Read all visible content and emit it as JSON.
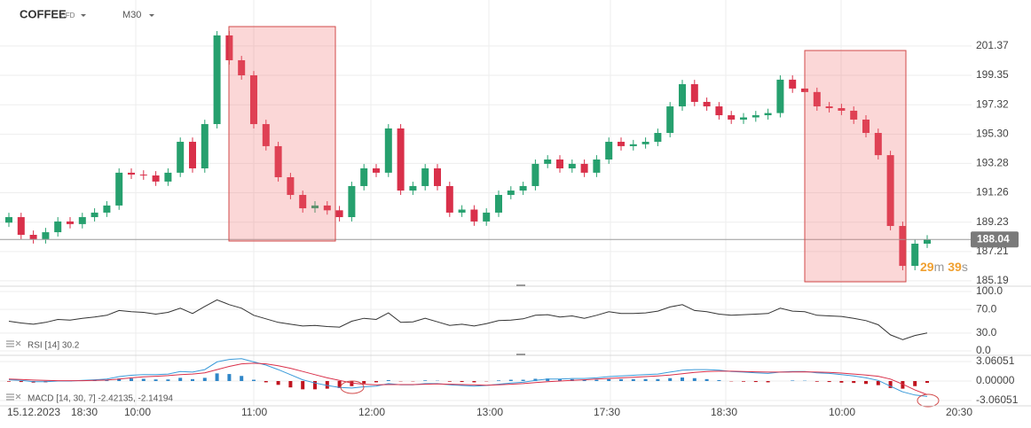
{
  "header": {
    "symbol": "COFFEE",
    "symbol_type": "CFD",
    "timeframe": "M30"
  },
  "chart_data": [
    {
      "type": "candlestick",
      "open": [
        189.2,
        189.58,
        188.36,
        188.06,
        188.54,
        189.28,
        189.1,
        189.58,
        189.89,
        190.38,
        192.64,
        192.51,
        192.45,
        192.03,
        192.64,
        194.77,
        192.94,
        195.99,
        202.1,
        200.39,
        199.35,
        195.99,
        194.47,
        192.33,
        191.11,
        190.19,
        190.38,
        190.05,
        189.58,
        191.72,
        192.94,
        192.64,
        195.69,
        191.41,
        191.72,
        192.94,
        191.72,
        189.89,
        190.1,
        189.28,
        189.89,
        191.11,
        191.41,
        191.72,
        193.25,
        193.55,
        192.94,
        193.25,
        192.64,
        193.55,
        194.77,
        194.47,
        194.6,
        194.77,
        195.38,
        197.21,
        198.74,
        197.52,
        197.21,
        196.6,
        196.3,
        196.45,
        196.6,
        196.75,
        199.05,
        198.44,
        198.2,
        197.21,
        197.09,
        196.91,
        196.3,
        195.38,
        193.85,
        188.97,
        186.22,
        187.75
      ],
      "high": [
        189.88,
        189.88,
        188.66,
        188.84,
        189.58,
        189.58,
        189.88,
        190.19,
        190.68,
        192.94,
        192.94,
        192.81,
        192.75,
        192.94,
        195.07,
        195.07,
        196.29,
        202.4,
        202.4,
        200.69,
        199.65,
        196.29,
        194.77,
        192.63,
        191.41,
        190.68,
        190.68,
        190.35,
        192.02,
        193.24,
        193.24,
        195.99,
        195.99,
        192.02,
        193.24,
        193.24,
        192.02,
        190.4,
        190.4,
        190.19,
        191.41,
        191.71,
        192.02,
        193.55,
        193.85,
        193.85,
        193.55,
        193.55,
        193.85,
        195.07,
        195.07,
        194.9,
        195.07,
        195.68,
        197.51,
        199.04,
        199.04,
        197.82,
        197.51,
        196.9,
        196.75,
        196.9,
        197.05,
        199.35,
        199.35,
        198.74,
        198.5,
        197.51,
        197.39,
        197.21,
        196.6,
        195.68,
        194.15,
        189.27,
        188.05,
        188.34
      ],
      "low": [
        188.9,
        188.06,
        187.76,
        187.76,
        188.24,
        188.8,
        188.8,
        189.28,
        189.59,
        190.08,
        192.21,
        192.15,
        191.73,
        191.73,
        192.34,
        192.64,
        192.64,
        195.69,
        200.09,
        199.05,
        195.69,
        194.17,
        192.03,
        190.81,
        189.89,
        189.89,
        189.75,
        189.28,
        189.28,
        191.42,
        192.34,
        192.34,
        191.11,
        191.11,
        191.42,
        191.42,
        189.59,
        189.59,
        188.98,
        188.98,
        189.59,
        190.81,
        191.11,
        191.42,
        192.95,
        192.64,
        192.64,
        192.34,
        192.34,
        193.25,
        194.17,
        194.17,
        194.3,
        194.47,
        195.08,
        196.91,
        197.22,
        196.91,
        196.3,
        196.0,
        196.0,
        196.15,
        196.3,
        196.45,
        198.14,
        197.9,
        196.91,
        196.79,
        196.61,
        196.0,
        195.08,
        193.55,
        188.67,
        185.92,
        185.92,
        187.45
      ],
      "close": [
        189.58,
        188.36,
        188.06,
        188.54,
        189.28,
        189.1,
        189.58,
        189.89,
        190.38,
        192.64,
        192.51,
        192.45,
        192.03,
        192.64,
        194.77,
        192.94,
        195.99,
        202.1,
        200.39,
        199.35,
        195.99,
        194.47,
        192.33,
        191.11,
        190.19,
        190.38,
        190.05,
        189.58,
        191.72,
        192.94,
        192.64,
        195.69,
        191.41,
        191.72,
        192.94,
        191.72,
        189.89,
        190.1,
        189.28,
        189.89,
        191.11,
        191.41,
        191.72,
        193.25,
        193.55,
        192.94,
        193.25,
        192.64,
        193.55,
        194.77,
        194.47,
        194.6,
        194.77,
        195.38,
        197.21,
        198.74,
        197.52,
        197.21,
        196.6,
        196.3,
        196.45,
        196.6,
        196.75,
        199.05,
        198.44,
        198.2,
        197.21,
        197.09,
        196.91,
        196.3,
        195.38,
        193.85,
        188.97,
        186.22,
        187.75,
        188.04
      ],
      "up_color": "#26a06e",
      "down_color": "#d9304a",
      "ylim": [
        184.88,
        204.54
      ],
      "yticks": [
        201.37,
        199.35,
        197.32,
        {
          "value": 195.3,
          "label": "195.30"
        },
        193.28,
        191.26,
        189.23,
        187.21,
        185.19
      ],
      "last_price": 188.04,
      "countdown": [
        "29",
        "m",
        "39",
        "s"
      ],
      "x_labels": [
        "15.12.2023",
        "18:30",
        "10:00",
        "11:00",
        "12:00",
        "13:00",
        "17:30",
        "18:30",
        "10:00",
        "20:30"
      ]
    },
    {
      "type": "line",
      "label": "RSI [14] 30.2",
      "color": "#333333",
      "values": [
        50,
        47,
        45,
        48,
        53,
        52,
        55,
        57,
        60,
        68,
        66,
        65,
        62,
        65,
        72,
        63,
        75,
        86,
        78,
        72,
        60,
        54,
        48,
        45,
        42,
        43,
        41,
        40,
        50,
        55,
        53,
        64,
        48,
        49,
        55,
        49,
        43,
        45,
        42,
        46,
        51,
        52,
        54,
        60,
        61,
        57,
        59,
        55,
        60,
        66,
        63,
        63,
        64,
        67,
        74,
        78,
        68,
        66,
        62,
        60,
        61,
        62,
        63,
        72,
        67,
        66,
        60,
        59,
        58,
        55,
        51,
        44,
        27,
        19,
        26,
        30.2
      ],
      "ylim": [
        -6,
        107.5
      ],
      "yticks": [
        {
          "value": 100,
          "label": "100.0"
        },
        {
          "value": 70,
          "label": "70.0"
        },
        {
          "value": 30,
          "label": "30.0"
        },
        {
          "value": 0,
          "label": "0.0"
        }
      ]
    },
    {
      "type": "macd",
      "label": "MACD [14, 30, 7] -2.42135, -2.14194",
      "macd_color": "#3a9ad9",
      "signal_color": "#d9304a",
      "hist_up_color": "#2f86c8",
      "hist_down_color": "#c0141f",
      "macd": [
        0.2,
        0.1,
        -0.1,
        -0.1,
        0.0,
        0.0,
        0.1,
        0.2,
        0.3,
        0.7,
        0.9,
        1.0,
        1.0,
        1.1,
        1.5,
        1.4,
        1.8,
        3.0,
        3.4,
        3.5,
        3.0,
        2.5,
        1.8,
        1.0,
        0.2,
        -0.3,
        -0.7,
        -1.0,
        -1.1,
        -0.9,
        -0.8,
        -0.4,
        -0.6,
        -0.6,
        -0.4,
        -0.4,
        -0.6,
        -0.7,
        -0.8,
        -0.7,
        -0.5,
        -0.3,
        -0.2,
        0.1,
        0.3,
        0.3,
        0.4,
        0.4,
        0.5,
        0.7,
        0.8,
        0.9,
        1.0,
        1.1,
        1.4,
        1.7,
        1.8,
        1.8,
        1.7,
        1.5,
        1.4,
        1.3,
        1.2,
        1.4,
        1.5,
        1.5,
        1.3,
        1.2,
        1.0,
        0.8,
        0.5,
        0.1,
        -0.8,
        -1.7,
        -2.2,
        -2.42135
      ],
      "signal": [
        0.3,
        0.25,
        0.15,
        0.1,
        0.05,
        0.05,
        0.05,
        0.1,
        0.15,
        0.3,
        0.5,
        0.65,
        0.75,
        0.85,
        1.0,
        1.1,
        1.3,
        1.8,
        2.3,
        2.7,
        2.8,
        2.7,
        2.4,
        2.0,
        1.5,
        1.0,
        0.5,
        0.1,
        -0.3,
        -0.5,
        -0.6,
        -0.55,
        -0.55,
        -0.55,
        -0.5,
        -0.45,
        -0.5,
        -0.55,
        -0.6,
        -0.65,
        -0.6,
        -0.5,
        -0.4,
        -0.25,
        -0.1,
        0.0,
        0.1,
        0.2,
        0.3,
        0.4,
        0.5,
        0.6,
        0.7,
        0.8,
        0.95,
        1.15,
        1.35,
        1.5,
        1.55,
        1.55,
        1.5,
        1.45,
        1.4,
        1.4,
        1.42,
        1.45,
        1.4,
        1.35,
        1.25,
        1.1,
        0.95,
        0.75,
        0.3,
        -0.5,
        -1.4,
        -2.14194
      ],
      "histogram": [
        -0.1,
        -0.15,
        -0.25,
        -0.2,
        -0.05,
        -0.05,
        0.05,
        0.1,
        0.15,
        0.4,
        0.4,
        0.35,
        0.25,
        0.25,
        0.5,
        0.3,
        0.5,
        1.2,
        1.1,
        0.8,
        0.2,
        -0.2,
        -0.6,
        -1.0,
        -1.3,
        -1.3,
        -1.2,
        -1.1,
        -0.8,
        -0.4,
        -0.2,
        0.15,
        -0.05,
        -0.05,
        0.1,
        0.05,
        -0.1,
        -0.15,
        -0.2,
        -0.05,
        0.1,
        0.2,
        0.2,
        0.35,
        0.4,
        0.3,
        0.3,
        0.2,
        0.2,
        0.3,
        0.3,
        0.3,
        0.3,
        0.3,
        0.45,
        0.55,
        0.45,
        0.3,
        0.15,
        -0.05,
        -0.1,
        -0.15,
        -0.2,
        0.0,
        0.08,
        0.05,
        -0.1,
        -0.15,
        -0.25,
        -0.3,
        -0.45,
        -0.65,
        -1.1,
        -1.2,
        -0.8,
        -0.28
      ],
      "ylim": [
        -3.894,
        3.894
      ],
      "yticks": [
        3.06051,
        {
          "value": 0,
          "label": "0.00000"
        },
        -3.06051
      ]
    }
  ]
}
